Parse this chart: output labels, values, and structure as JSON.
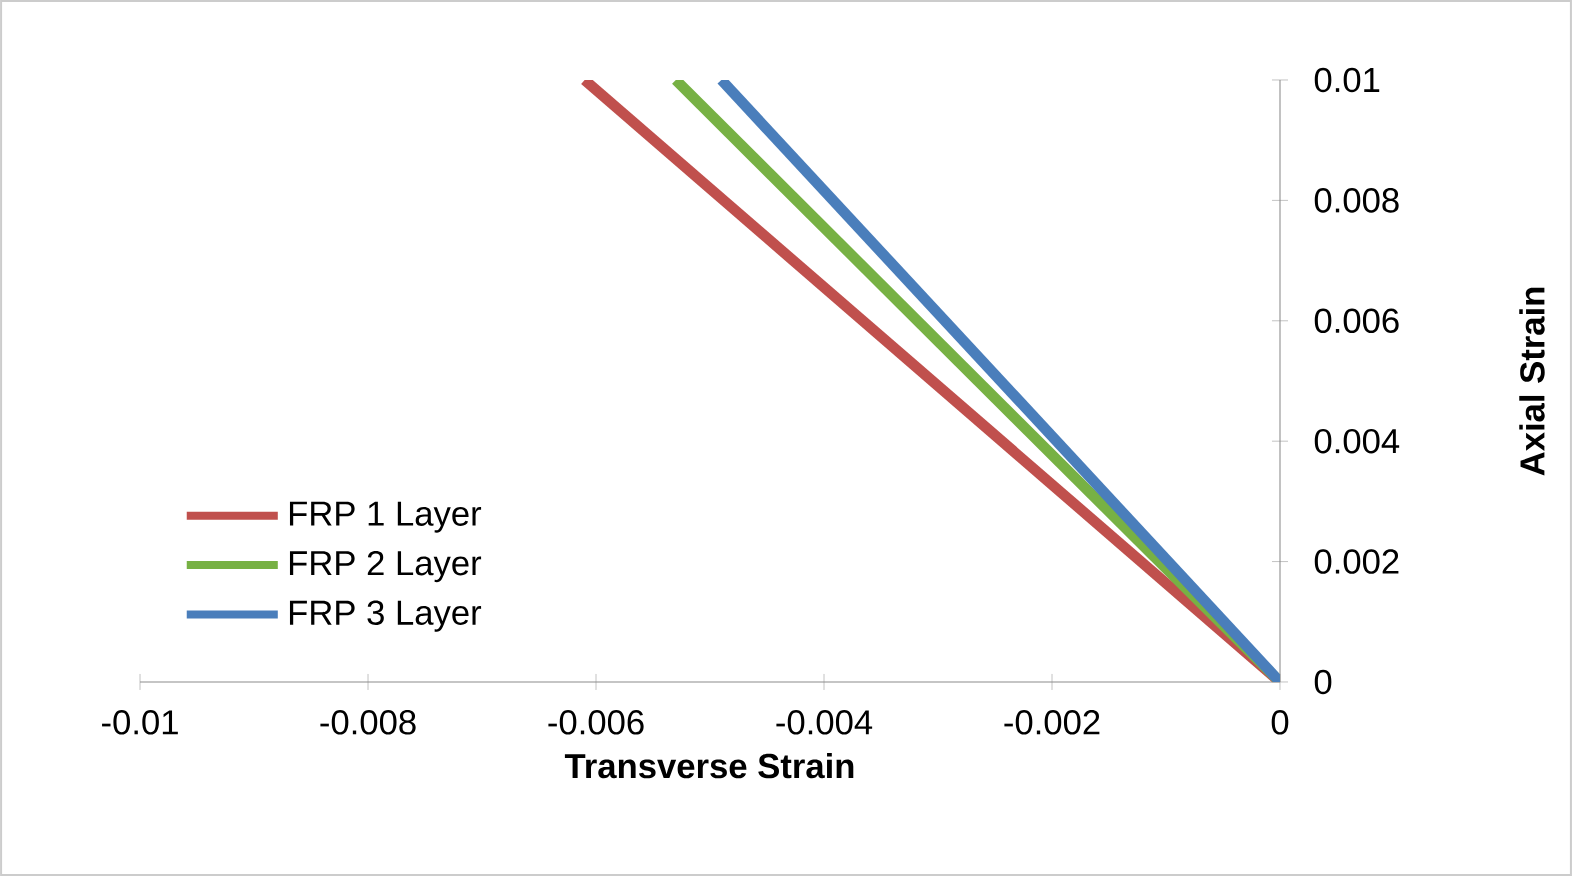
{
  "chart_data": {
    "type": "line",
    "xlabel": "Transverse Strain",
    "ylabel": "Axial Strain",
    "series": [
      {
        "name": "FRP 1 Layer",
        "color": "#c0504d",
        "x": [
          0,
          -0.0061
        ],
        "values": [
          0,
          0.01
        ]
      },
      {
        "name": "FRP 2 Layer",
        "color": "#77b144",
        "x": [
          0,
          -0.0053
        ],
        "values": [
          0,
          0.01
        ]
      },
      {
        "name": "FRP 3 Layer",
        "color": "#4a7ebb",
        "x": [
          0,
          -0.0049
        ],
        "values": [
          0,
          0.01
        ]
      }
    ],
    "xlim": [
      -0.01,
      0
    ],
    "ylim": [
      0,
      0.01
    ],
    "xticks": [
      -0.01,
      -0.008,
      -0.006,
      -0.004,
      -0.002,
      0
    ],
    "yticks": [
      0,
      0.002,
      0.004,
      0.006,
      0.008,
      0.01
    ],
    "grid": false,
    "legend": "bottom left",
    "marker": "none",
    "line_style": "solid"
  }
}
